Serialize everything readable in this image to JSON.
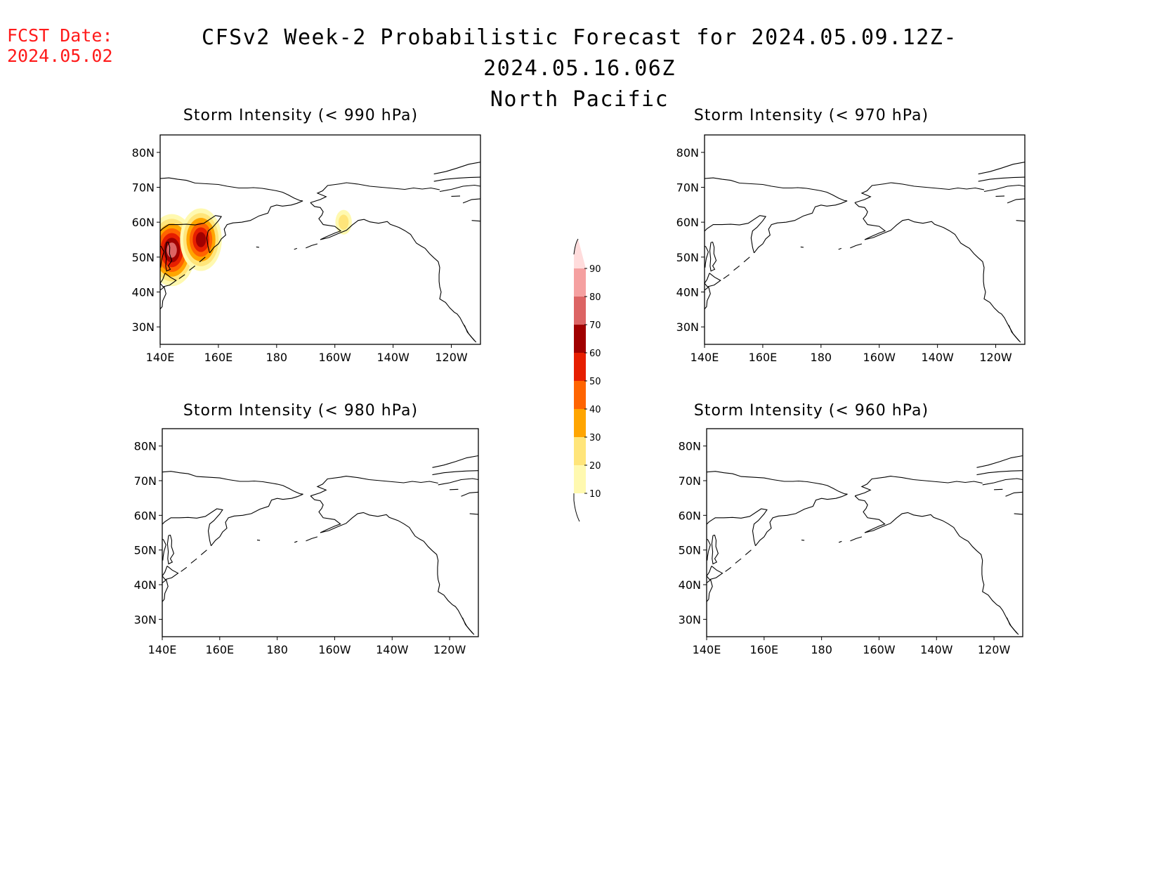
{
  "fcst_date": {
    "label": "FCST Date:",
    "value": "2024.05.02"
  },
  "title": {
    "line1": "CFSv2 Week-2 Probabilistic Forecast for 2024.05.09.12Z-2024.05.16.06Z",
    "line2": "North Pacific"
  },
  "axes": {
    "x_ticks": [
      "140E",
      "160E",
      "180",
      "160W",
      "140W",
      "120W"
    ],
    "y_ticks": [
      "80N",
      "70N",
      "60N",
      "50N",
      "40N",
      "30N"
    ],
    "x_range_deg_east": [
      140,
      250
    ],
    "y_range_deg_north": [
      25,
      85
    ]
  },
  "panels": [
    {
      "id": "p990",
      "title": "Storm Intensity (< 990 hPa)",
      "probability_features": [
        {
          "region": "Sea of Okhotsk / Sakhalin",
          "lon": 144,
          "lat": 52,
          "max_prob": 70
        },
        {
          "region": "Kamchatka west coast",
          "lon": 154,
          "lat": 55,
          "max_prob": 60
        },
        {
          "region": "Alaska Peninsula",
          "lon": 203,
          "lat": 60,
          "max_prob": 20
        }
      ]
    },
    {
      "id": "p970",
      "title": "Storm Intensity (< 970 hPa)",
      "probability_features": []
    },
    {
      "id": "p980",
      "title": "Storm Intensity (< 980 hPa)",
      "probability_features": []
    },
    {
      "id": "p960",
      "title": "Storm Intensity (< 960 hPa)",
      "probability_features": []
    }
  ],
  "colorbar": {
    "labels": [
      "10",
      "20",
      "30",
      "40",
      "50",
      "60",
      "70",
      "80",
      "90"
    ],
    "colors": [
      "#fff9b0",
      "#ffe57a",
      "#ffa500",
      "#ff6400",
      "#e61e00",
      "#a00000",
      "#dc6464",
      "#f5a0a0",
      "#ffdcdc"
    ]
  },
  "colors": {
    "fcst_text": "#ff1a1a",
    "coastline": "#000000"
  }
}
